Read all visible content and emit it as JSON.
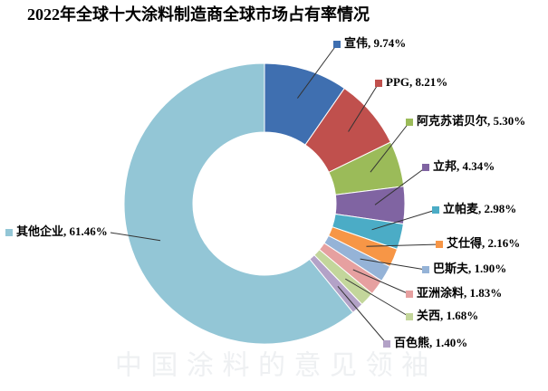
{
  "chart_data": {
    "type": "donut",
    "title": "2022年全球十大涂料制造商全球市场占有率情况",
    "watermark": "中 国 涂 料 的 意 见 领 袖",
    "values": [
      9.74,
      8.21,
      5.3,
      4.34,
      2.98,
      2.16,
      1.9,
      1.83,
      1.68,
      1.4,
      61.46
    ],
    "value_labels": [
      "宣伟, 9.74%",
      "PPG, 8.21%",
      "阿克苏诺贝尔, 5.30%",
      "立邦, 4.34%",
      "立帕麦, 2.98%",
      "艾仕得, 2.16%",
      "巴斯夫, 1.90%",
      "亚洲涂料, 1.83%",
      "关西, 1.68%",
      "百色熊, 1.40%",
      "其他企业, 61.46%"
    ],
    "colors": [
      "#3F6FB0",
      "#C0504D",
      "#9BBB59",
      "#8064A2",
      "#4BACC6",
      "#F79646",
      "#95B3D7",
      "#E6A0A0",
      "#C3D69B",
      "#B3A2C7",
      "#93C6D6"
    ]
  }
}
